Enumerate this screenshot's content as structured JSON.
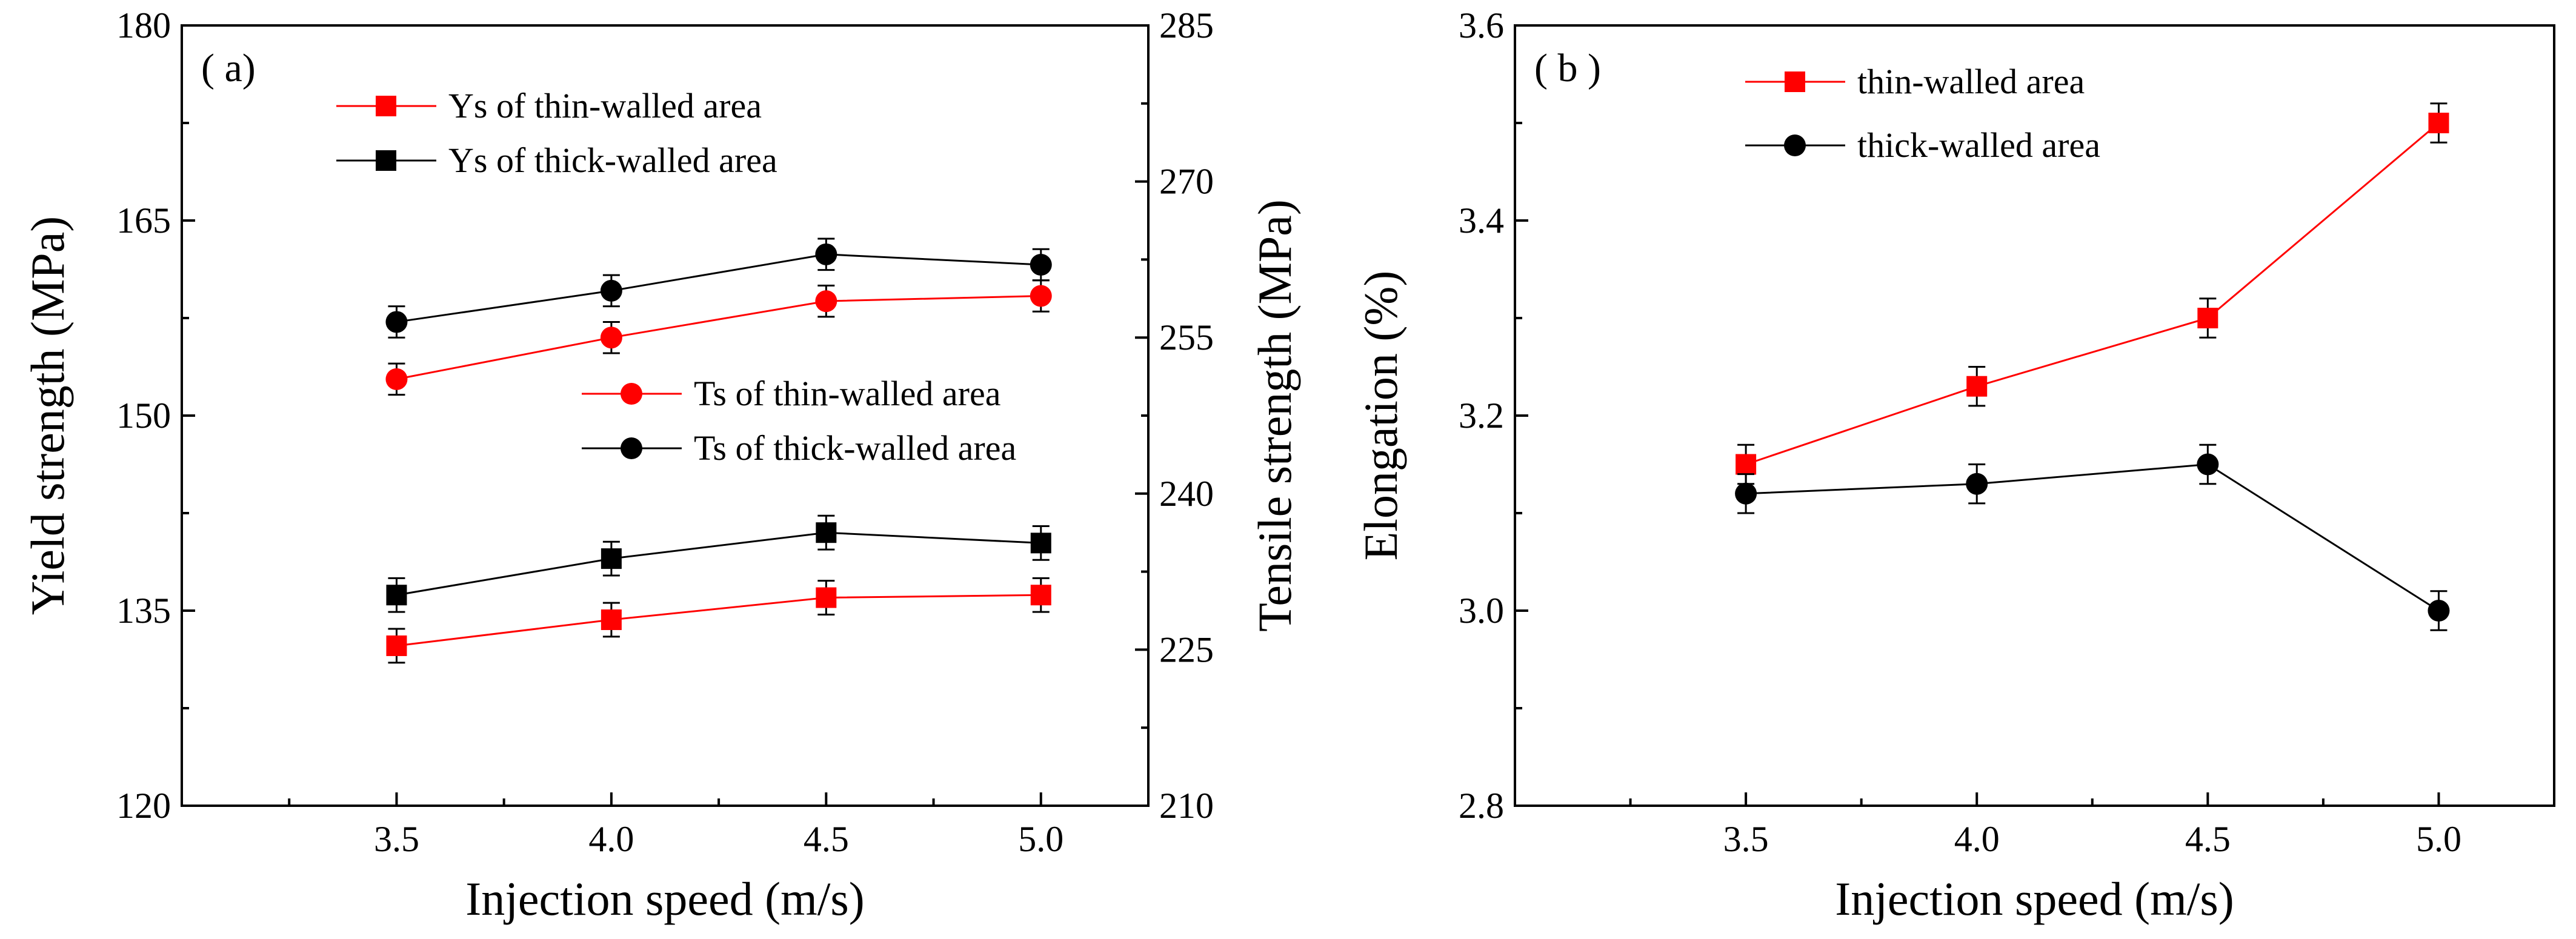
{
  "chart_data": [
    {
      "type": "line",
      "panel_label": "( a)",
      "title": "",
      "xlabel": "Injection speed (m/s)",
      "ylabel": "Yield strength (MPa)",
      "ylabel_right": "Tensile strength (MPa)",
      "x": [
        3.5,
        4.0,
        4.5,
        5.0
      ],
      "x_tick_labels": [
        "3.5",
        "4.0",
        "4.5",
        "5.0"
      ],
      "xlim": [
        3.0,
        5.25
      ],
      "ylim": [
        120,
        180
      ],
      "y_ticks": [
        120,
        135,
        150,
        165,
        180
      ],
      "y_tick_labels": [
        "120",
        "135",
        "150",
        "165",
        "180"
      ],
      "ylim_right": [
        210,
        285
      ],
      "y_ticks_right": [
        210,
        225,
        240,
        255,
        270,
        285
      ],
      "y_tick_labels_right": [
        "210",
        "225",
        "240",
        "255",
        "270",
        "285"
      ],
      "grid": false,
      "series": [
        {
          "name": "Ys of thin-walled area",
          "axis": "left",
          "marker": "square",
          "color": "#ff0000",
          "values": [
            132.3,
            134.3,
            136.0,
            136.2
          ],
          "errors": [
            1.3,
            1.3,
            1.3,
            1.3
          ]
        },
        {
          "name": "Ys of thick-walled area",
          "axis": "left",
          "marker": "square",
          "color": "#000000",
          "values": [
            136.2,
            139.0,
            141.0,
            140.2
          ],
          "errors": [
            1.3,
            1.3,
            1.3,
            1.3
          ]
        },
        {
          "name": "Ts of thin-walled area",
          "axis": "right",
          "marker": "circle",
          "color": "#ff0000",
          "values": [
            251.0,
            255.0,
            258.5,
            259.0
          ],
          "errors": [
            1.5,
            1.5,
            1.5,
            1.5
          ]
        },
        {
          "name": "Ts of thick-walled area",
          "axis": "right",
          "marker": "circle",
          "color": "#000000",
          "values": [
            256.5,
            259.5,
            263.0,
            262.0
          ],
          "errors": [
            1.5,
            1.5,
            1.5,
            1.5
          ]
        }
      ],
      "legend_groups": [
        {
          "placement": "top-left",
          "series": [
            0,
            1
          ]
        },
        {
          "placement": "center",
          "series": [
            2,
            3
          ]
        }
      ]
    },
    {
      "type": "line",
      "panel_label": "( b )",
      "title": "",
      "xlabel": "Injection speed (m/s)",
      "ylabel": "Elongation (%)",
      "x": [
        3.5,
        4.0,
        4.5,
        5.0
      ],
      "x_tick_labels": [
        "3.5",
        "4.0",
        "4.5",
        "5.0"
      ],
      "xlim": [
        3.0,
        5.25
      ],
      "ylim": [
        2.8,
        3.6
      ],
      "y_ticks": [
        2.8,
        3.0,
        3.2,
        3.4,
        3.6
      ],
      "y_tick_labels": [
        "2.8",
        "3.0",
        "3.2",
        "3.4",
        "3.6"
      ],
      "grid": false,
      "series": [
        {
          "name": "thin-walled area",
          "marker": "square",
          "color": "#ff0000",
          "values": [
            3.15,
            3.23,
            3.3,
            3.5
          ],
          "errors": [
            0.02,
            0.02,
            0.02,
            0.02
          ]
        },
        {
          "name": "thick-walled area",
          "marker": "circle",
          "color": "#000000",
          "values": [
            3.12,
            3.13,
            3.15,
            3.0
          ],
          "errors": [
            0.02,
            0.02,
            0.02,
            0.02
          ]
        }
      ],
      "legend_groups": [
        {
          "placement": "top-left",
          "series": [
            0,
            1
          ]
        }
      ]
    }
  ]
}
